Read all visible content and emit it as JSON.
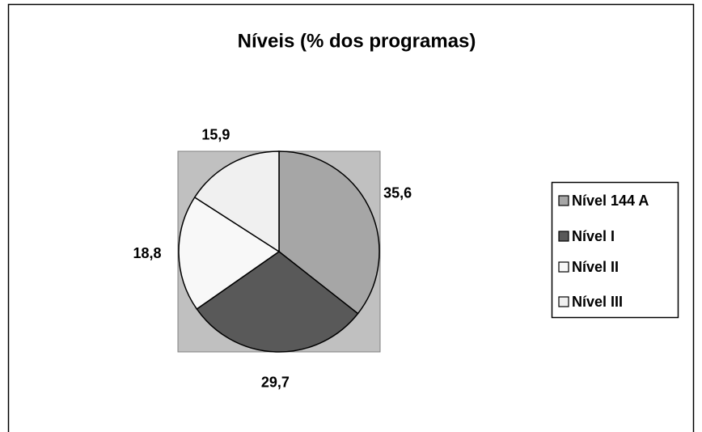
{
  "chart_data": {
    "type": "pie",
    "title": "Níveis (% dos programas)",
    "categories": [
      "Nível 144 A",
      "Nível I",
      "Nível II",
      "Nível III"
    ],
    "values": [
      35.6,
      29.7,
      18.8,
      15.9
    ],
    "value_labels": [
      "35,6",
      "29,7",
      "18,8",
      "15,9"
    ],
    "colors": [
      "#a6a6a6",
      "#595959",
      "#f8f8f8",
      "#f0f0f0"
    ],
    "legend": "right"
  }
}
